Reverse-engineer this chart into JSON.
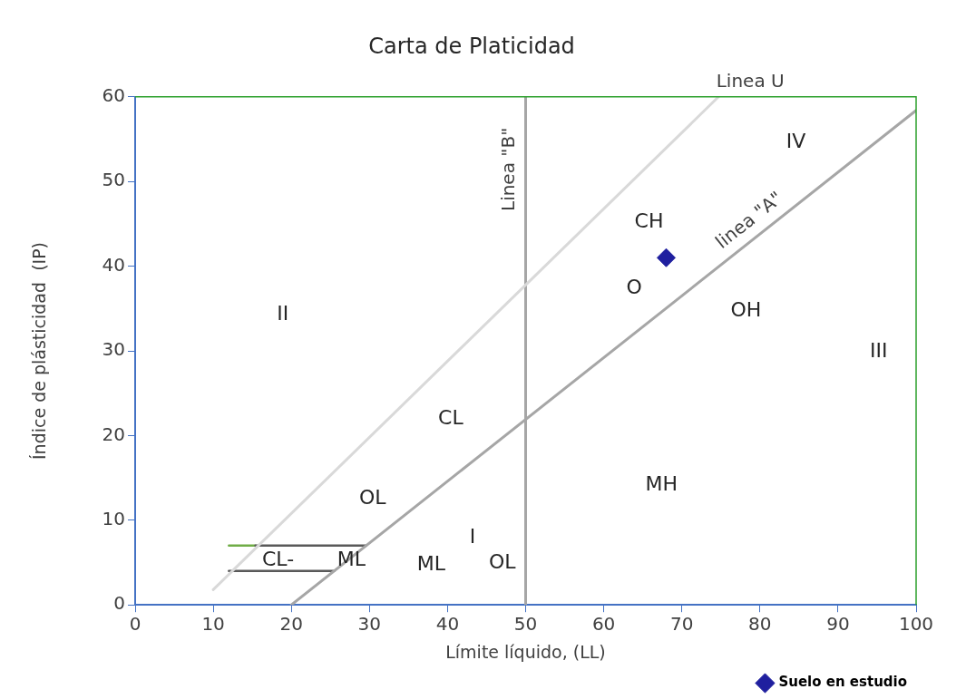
{
  "chart_data": {
    "type": "line",
    "title": "Carta de Platicidad",
    "xlabel": "Límite líquido, (LL)",
    "ylabel": "Índice de plásticidad  (IP)",
    "xlim": [
      0,
      100
    ],
    "ylim": [
      0,
      60
    ],
    "xticks": [
      0,
      10,
      20,
      30,
      40,
      50,
      60,
      70,
      80,
      90,
      100
    ],
    "yticks": [
      0,
      10,
      20,
      30,
      40,
      50,
      60
    ],
    "grid": false,
    "legend": "bottom right",
    "marker": "none",
    "series": [
      {
        "name": "linea \"A\"",
        "color": "#a6a6a6",
        "x": [
          20,
          100
        ],
        "values": [
          0,
          58.4
        ]
      },
      {
        "name": "Linea U",
        "color": "#d9d9d9",
        "x": [
          10,
          74.7
        ],
        "values": [
          1.8,
          60
        ]
      },
      {
        "name": "Linea \"B\"",
        "color": "#a6a6a6",
        "x": [
          50,
          50
        ],
        "values": [
          0,
          60
        ]
      },
      {
        "color": "#595959",
        "x": [
          15.4,
          29.6
        ],
        "values": [
          7,
          7
        ]
      },
      {
        "color": "#595959",
        "x": [
          12,
          25.5
        ],
        "values": [
          4,
          4
        ]
      },
      {
        "color": "#70ad47",
        "x": [
          12,
          15.4
        ],
        "values": [
          7,
          7
        ]
      },
      {
        "name": "Suelo en estudio",
        "type": "scatter",
        "marker": "diamond",
        "color": "#1f1f9f",
        "x": [
          68
        ],
        "values": [
          41
        ]
      }
    ],
    "annotations": [
      "CH",
      "O",
      "OH",
      "CL",
      "OL",
      "MH",
      "ML",
      "OL",
      "I",
      "II",
      "III",
      "IV",
      "CL-",
      "ML"
    ]
  }
}
